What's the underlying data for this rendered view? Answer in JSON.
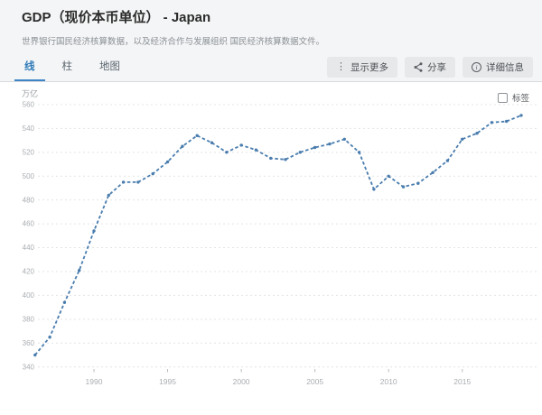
{
  "header": {
    "title": "GDP（现价本币单位） - Japan",
    "subtitle": "世界银行国民经济核算数据，以及经济合作与发展组织 国民经济核算数据文件。"
  },
  "tabs": [
    {
      "label": "线",
      "active": true
    },
    {
      "label": "柱",
      "active": false
    },
    {
      "label": "地图",
      "active": false
    }
  ],
  "toolbar": {
    "show_more": "显示更多",
    "share": "分享",
    "details": "详细信息",
    "icons": [
      "kebab-icon",
      "share-icon",
      "info-icon"
    ]
  },
  "chart_controls": {
    "labels_label": "标签",
    "labels_checked": false
  },
  "colors": {
    "line": "#4a7dae",
    "active_tab": "#2e7ab8",
    "grid": "#e3e4e5",
    "axis_text": "#a9adb1"
  },
  "chart_data": {
    "type": "line",
    "title": "GDP（现价本币单位） - Japan",
    "unit_label": "万亿",
    "x": [
      1986,
      1987,
      1988,
      1989,
      1990,
      1991,
      1992,
      1993,
      1994,
      1995,
      1996,
      1997,
      1998,
      1999,
      2000,
      2001,
      2002,
      2003,
      2004,
      2005,
      2006,
      2007,
      2008,
      2009,
      2010,
      2011,
      2012,
      2013,
      2014,
      2015,
      2016,
      2017,
      2018,
      2019
    ],
    "series": [
      {
        "name": "GDP（现价本币单位） - Japan",
        "values": [
          350,
          365,
          394,
          421,
          454,
          484,
          495,
          495,
          502,
          512,
          525,
          534,
          528,
          520,
          526,
          522,
          515,
          514,
          520,
          524,
          527,
          531,
          520,
          489,
          500,
          491,
          494,
          503,
          513,
          531,
          536,
          545,
          546,
          551
        ]
      }
    ],
    "ylim": [
      340,
      560
    ],
    "ytick_step": 20,
    "xticks": [
      1990,
      1995,
      2000,
      2005,
      2010,
      2015
    ],
    "grid": "horizontal-dashed",
    "legend": "none",
    "line_style": "dashed-with-point-markers"
  }
}
